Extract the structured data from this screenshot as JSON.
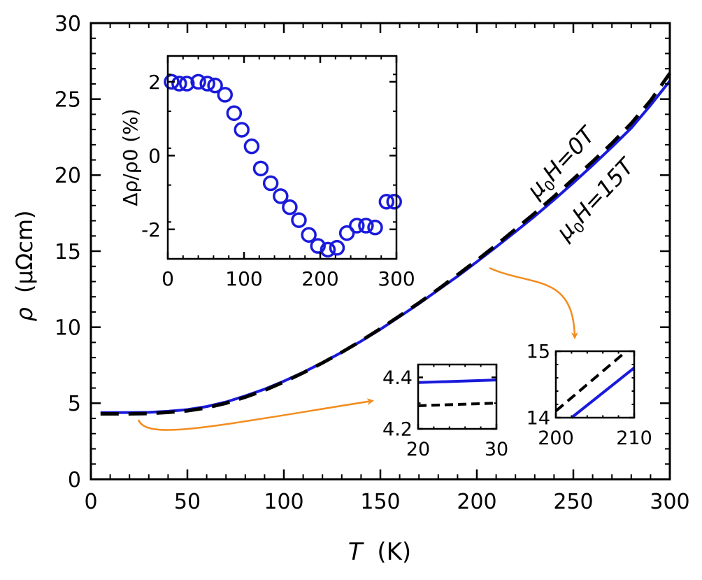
{
  "chart_data": [
    {
      "id": "main",
      "type": "line",
      "xlabel_var": "T",
      "xlabel_unit": "(K)",
      "ylabel_var": "ρ",
      "ylabel_unit": "(μΩcm)",
      "xlim": [
        0,
        300
      ],
      "ylim": [
        0,
        30
      ],
      "xticks": [
        0,
        50,
        100,
        150,
        200,
        250,
        300
      ],
      "yticks": [
        0,
        5,
        10,
        15,
        20,
        25,
        30
      ],
      "series": [
        {
          "name": "μ0H=0T",
          "color": "#000000",
          "style": "dashed",
          "x": [
            5,
            10,
            20,
            30,
            40,
            50,
            60,
            70,
            80,
            90,
            100,
            110,
            120,
            130,
            140,
            150,
            160,
            170,
            180,
            190,
            200,
            210,
            220,
            230,
            240,
            250,
            260,
            270,
            280,
            290,
            300
          ],
          "y": [
            4.3,
            4.3,
            4.3,
            4.32,
            4.4,
            4.5,
            4.7,
            5.0,
            5.4,
            5.85,
            6.4,
            7.0,
            7.65,
            8.35,
            9.1,
            9.9,
            10.75,
            11.6,
            12.5,
            13.45,
            14.4,
            15.4,
            16.45,
            17.5,
            18.6,
            19.75,
            20.9,
            22.1,
            23.4,
            24.9,
            26.7
          ]
        },
        {
          "name": "μ0H=15T",
          "color": "#1a1adc",
          "style": "solid",
          "x": [
            5,
            10,
            20,
            30,
            40,
            50,
            60,
            70,
            80,
            90,
            100,
            110,
            120,
            130,
            140,
            150,
            160,
            170,
            180,
            190,
            200,
            210,
            220,
            230,
            240,
            250,
            260,
            270,
            280,
            290,
            300
          ],
          "y": [
            4.38,
            4.38,
            4.39,
            4.4,
            4.47,
            4.58,
            4.78,
            5.08,
            5.48,
            5.92,
            6.45,
            7.03,
            7.67,
            8.35,
            9.08,
            9.86,
            10.7,
            11.55,
            12.45,
            13.35,
            14.3,
            15.28,
            16.28,
            17.3,
            18.38,
            19.5,
            20.65,
            21.85,
            23.1,
            24.6,
            26.2
          ]
        }
      ],
      "annotations": [
        {
          "var": "μ",
          "sub": "0",
          "rest": "H=0T",
          "color": "#000000"
        },
        {
          "var": "μ",
          "sub": "0",
          "rest": "H=15T",
          "color": "#1a1adc"
        }
      ],
      "arrow_color": "#f28c1e"
    },
    {
      "id": "inset-mr",
      "type": "scatter",
      "ylabel": "Δρ/ρ0 (%)",
      "xlim": [
        0,
        300
      ],
      "ylim": [
        -2.8,
        2.7
      ],
      "xticks": [
        0,
        100,
        200,
        300
      ],
      "yticks": [
        -2,
        0,
        2
      ],
      "marker": "open-circle",
      "color": "#1a1adc",
      "x": [
        5,
        15,
        25,
        40,
        52,
        62,
        75,
        87,
        97,
        110,
        122,
        135,
        148,
        160,
        172,
        185,
        197,
        210,
        222,
        235,
        248,
        260,
        272,
        287,
        297
      ],
      "y": [
        2.0,
        1.95,
        1.95,
        2.0,
        1.95,
        1.9,
        1.65,
        1.15,
        0.7,
        0.25,
        -0.35,
        -0.75,
        -1.1,
        -1.4,
        -1.75,
        -2.15,
        -2.45,
        -2.55,
        -2.5,
        -2.1,
        -1.9,
        -1.9,
        -1.95,
        -1.25,
        -1.25
      ]
    },
    {
      "id": "inset-low",
      "type": "line",
      "xlim": [
        20,
        30
      ],
      "ylim": [
        4.2,
        4.45
      ],
      "xticks": [
        20,
        30
      ],
      "yticks": [
        4.2,
        4.4
      ],
      "series": [
        {
          "color": "#000000",
          "style": "dashed",
          "x": [
            20,
            30
          ],
          "y": [
            4.29,
            4.3
          ]
        },
        {
          "color": "#1a1adc",
          "style": "solid",
          "x": [
            20,
            30
          ],
          "y": [
            4.38,
            4.39
          ]
        }
      ]
    },
    {
      "id": "inset-high",
      "type": "line",
      "xlim": [
        200,
        210
      ],
      "ylim": [
        14,
        15
      ],
      "xticks": [
        200,
        210
      ],
      "yticks": [
        14,
        15
      ],
      "series": [
        {
          "color": "#000000",
          "style": "dashed",
          "x": [
            200,
            209
          ],
          "y": [
            14.1,
            15.0
          ]
        },
        {
          "color": "#1a1adc",
          "style": "solid",
          "x": [
            202,
            210
          ],
          "y": [
            14.0,
            14.75
          ]
        }
      ]
    }
  ]
}
